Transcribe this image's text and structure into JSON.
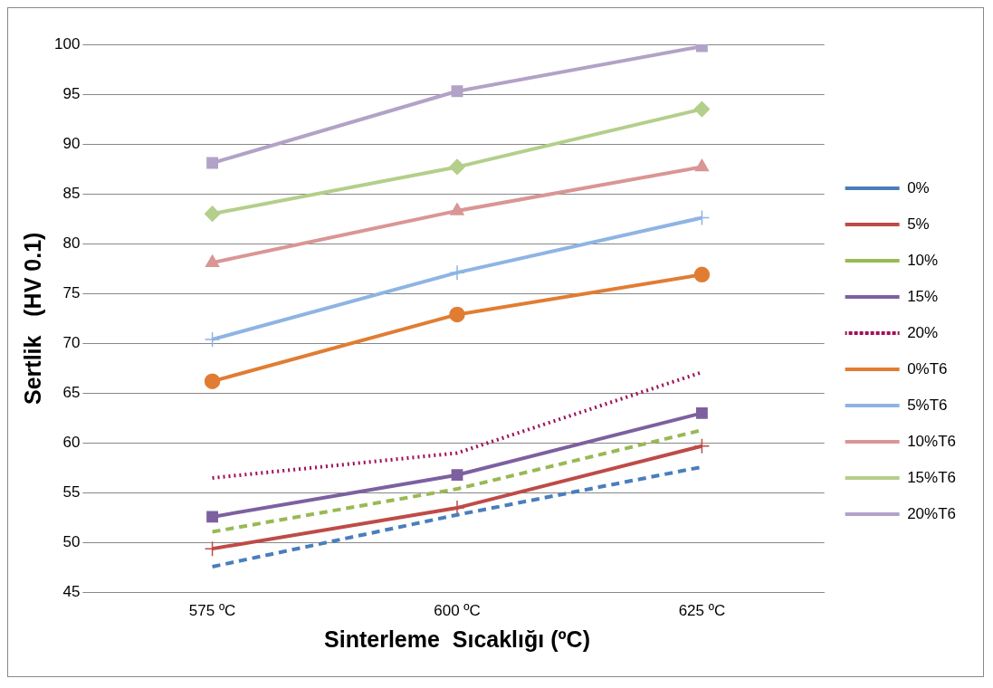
{
  "chart_data": {
    "type": "line",
    "xlabel": "Sinterleme  Sıcaklığı (ºC)",
    "ylabel": "Sertlik   (HV 0.1)",
    "categories": [
      "575 ºC",
      "600 ºC",
      "625 ºC"
    ],
    "ylim": [
      45,
      100
    ],
    "yticks": [
      45,
      50,
      55,
      60,
      65,
      70,
      75,
      80,
      85,
      90,
      95,
      100
    ],
    "grid": "y",
    "legend": "right",
    "series": [
      {
        "name": "0%",
        "color": "#4a7ebb",
        "values": [
          47.6,
          52.8,
          57.6
        ],
        "line_style": "dashed",
        "marker": "none"
      },
      {
        "name": "5%",
        "color": "#be4b48",
        "values": [
          49.4,
          53.5,
          59.7
        ],
        "line_style": "solid",
        "marker": "cross"
      },
      {
        "name": "10%",
        "color": "#98b954",
        "values": [
          51.1,
          55.4,
          61.3
        ],
        "line_style": "dashed",
        "marker": "none"
      },
      {
        "name": "15%",
        "color": "#7d60a0",
        "values": [
          52.6,
          56.8,
          63.0
        ],
        "line_style": "solid",
        "marker": "square"
      },
      {
        "name": "20%",
        "color": "#a0105a",
        "values": [
          56.5,
          59.0,
          67.1
        ],
        "line_style": "dotted",
        "marker": "none"
      },
      {
        "name": "0%T6",
        "color": "#e07d33",
        "values": [
          66.2,
          72.9,
          76.9
        ],
        "line_style": "solid",
        "marker": "circle"
      },
      {
        "name": "5%T6",
        "color": "#8eb4e3",
        "values": [
          70.4,
          77.1,
          82.6
        ],
        "line_style": "solid",
        "marker": "cross"
      },
      {
        "name": "10%T6",
        "color": "#d99694",
        "values": [
          78.1,
          83.3,
          87.7
        ],
        "line_style": "solid",
        "marker": "triangle"
      },
      {
        "name": "15%T6",
        "color": "#b3cf8b",
        "values": [
          83.0,
          87.7,
          93.5
        ],
        "line_style": "solid",
        "marker": "diamond"
      },
      {
        "name": "20%T6",
        "color": "#b3a2c7",
        "values": [
          88.1,
          95.3,
          99.8
        ],
        "line_style": "solid",
        "marker": "square"
      }
    ]
  }
}
